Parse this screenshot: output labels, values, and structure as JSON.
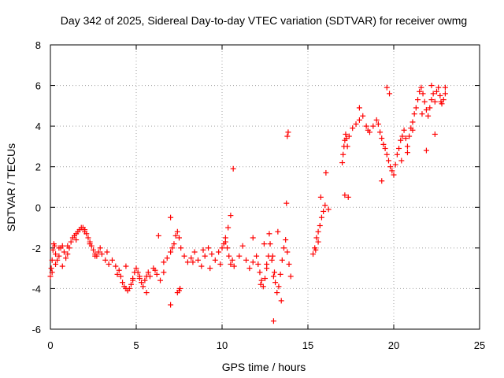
{
  "chart_data": {
    "type": "scatter",
    "title": "Day 342 of 2025, Sidereal Day-to-day VTEC variation (SDTVAR) for receiver owmg",
    "xlabel": "GPS time / hours",
    "ylabel": "SDTVAR / TECUs",
    "xlim": [
      0,
      25
    ],
    "ylim": [
      -6,
      8
    ],
    "xticks": [
      0,
      5,
      10,
      15,
      20,
      25
    ],
    "yticks": [
      -6,
      -4,
      -2,
      0,
      2,
      4,
      6,
      8
    ],
    "xtick_labels": [
      "0",
      "5",
      "10",
      "15",
      "20",
      "25"
    ],
    "ytick_labels": [
      "-6",
      "-4",
      "-2",
      "0",
      "2",
      "4",
      "6",
      "8"
    ],
    "grid": true,
    "marker": "+",
    "color": "#ff0000",
    "series": [
      {
        "name": "SDTVAR",
        "x": [
          0.0,
          0.05,
          0.1,
          0.15,
          0.2,
          0.25,
          0.3,
          0.4,
          0.5,
          0.6,
          0.7,
          0.8,
          0.9,
          1.0,
          1.1,
          1.2,
          1.3,
          1.4,
          1.5,
          1.6,
          1.7,
          1.8,
          1.9,
          2.0,
          2.1,
          2.2,
          2.3,
          2.4,
          2.5,
          2.6,
          2.7,
          2.8,
          2.9,
          3.0,
          3.2,
          3.4,
          3.6,
          3.8,
          4.0,
          4.1,
          4.2,
          4.3,
          4.4,
          4.5,
          4.6,
          4.7,
          4.8,
          4.9,
          5.0,
          5.1,
          5.2,
          5.3,
          5.4,
          5.5,
          5.6,
          5.7,
          5.8,
          6.0,
          6.2,
          6.4,
          6.6,
          6.8,
          7.0,
          7.1,
          7.2,
          7.3,
          7.4,
          7.5,
          7.6,
          7.8,
          8.0,
          8.2,
          8.4,
          8.6,
          8.8,
          9.0,
          9.2,
          9.4,
          9.6,
          9.8,
          10.0,
          10.1,
          10.2,
          10.3,
          10.4,
          10.5,
          10.6,
          10.7,
          11.0,
          11.2,
          11.4,
          11.6,
          11.8,
          12.0,
          12.1,
          12.2,
          12.3,
          12.4,
          12.5,
          12.6,
          12.7,
          12.8,
          12.9,
          13.0,
          13.1,
          13.2,
          13.3,
          13.4,
          13.5,
          13.6,
          13.7,
          13.8,
          13.9,
          14.0,
          15.3,
          15.4,
          15.5,
          15.6,
          15.7,
          15.8,
          15.9,
          16.0,
          17.0,
          17.05,
          17.1,
          17.15,
          17.2,
          17.25,
          17.3,
          17.4,
          17.6,
          17.8,
          18.0,
          18.2,
          18.4,
          18.6,
          18.8,
          19.0,
          19.1,
          19.2,
          19.3,
          19.4,
          19.5,
          19.6,
          19.7,
          19.8,
          19.9,
          20.0,
          20.1,
          20.2,
          20.3,
          20.4,
          20.5,
          20.6,
          20.7,
          20.8,
          20.9,
          21.0,
          21.1,
          21.2,
          21.3,
          21.4,
          21.5,
          21.6,
          21.7,
          21.8,
          21.9,
          22.0,
          22.1,
          22.2,
          22.3,
          22.4,
          22.5,
          22.6,
          22.7,
          22.8,
          22.9,
          23.0,
          0.1,
          0.3,
          0.5,
          0.7,
          1.0,
          1.5,
          2.0,
          2.3,
          2.6,
          3.3,
          3.9,
          4.4,
          4.8,
          5.2,
          5.6,
          6.1,
          6.6,
          7.4,
          7.5,
          7.55,
          8.3,
          8.9,
          9.3,
          9.9,
          10.2,
          10.35,
          10.5,
          10.65,
          11.8,
          12.25,
          12.45,
          12.6,
          12.75,
          12.95,
          13.05,
          13.25,
          13.45,
          13.75,
          13.85,
          15.45,
          15.6,
          15.75,
          16.05,
          16.2,
          17.15,
          17.35,
          18.0,
          18.5,
          19.6,
          19.75,
          20.45,
          20.8,
          21.1,
          21.65,
          22.2,
          22.75,
          23.0,
          21.9,
          22.4
        ],
        "y": [
          -3.4,
          -3.0,
          -2.6,
          -2.1,
          -1.8,
          -1.9,
          -2.3,
          -2.6,
          -2.4,
          -2.0,
          -1.9,
          -2.2,
          -2.5,
          -2.3,
          -2.0,
          -1.7,
          -1.5,
          -1.4,
          -1.3,
          -1.2,
          -1.1,
          -1.0,
          -1.0,
          -1.1,
          -1.3,
          -1.5,
          -1.7,
          -1.9,
          -2.1,
          -2.3,
          -2.4,
          -2.2,
          -2.0,
          -2.3,
          -2.6,
          -2.8,
          -2.6,
          -2.9,
          -3.1,
          -3.4,
          -3.7,
          -3.9,
          -4.0,
          -4.1,
          -4.0,
          -3.8,
          -3.5,
          -3.2,
          -3.0,
          -3.2,
          -3.5,
          -3.7,
          -3.9,
          -3.6,
          -3.4,
          -3.2,
          -3.4,
          -3.0,
          -3.3,
          -3.6,
          -3.2,
          -2.5,
          -2.2,
          -2.0,
          -1.8,
          -1.4,
          -1.2,
          -1.5,
          -2.0,
          -2.4,
          -2.7,
          -2.5,
          -2.2,
          -2.6,
          -2.9,
          -2.4,
          -2.0,
          -2.3,
          -2.6,
          -2.2,
          -2.0,
          -1.8,
          -1.7,
          -2.0,
          -2.4,
          -2.8,
          -2.6,
          -2.9,
          -2.4,
          -1.9,
          -2.6,
          -3.0,
          -2.7,
          -2.4,
          -2.8,
          -3.2,
          -3.6,
          -3.9,
          -3.5,
          -3.0,
          -2.4,
          -1.8,
          -2.6,
          -3.4,
          -3.7,
          -4.2,
          -3.9,
          -3.3,
          -2.6,
          -2.0,
          -1.6,
          -2.2,
          -2.8,
          -3.4,
          -2.3,
          -2.0,
          -1.5,
          -1.2,
          -0.9,
          -0.5,
          -0.2,
          0.1,
          2.2,
          2.6,
          3.0,
          3.3,
          3.6,
          3.4,
          3.0,
          3.5,
          3.9,
          4.1,
          4.3,
          4.5,
          4.0,
          3.7,
          4.0,
          4.3,
          4.1,
          3.7,
          3.4,
          3.1,
          2.9,
          2.6,
          2.3,
          2.0,
          1.8,
          1.6,
          2.1,
          2.6,
          2.9,
          3.3,
          3.5,
          3.8,
          3.4,
          3.0,
          3.5,
          3.9,
          4.2,
          4.6,
          4.9,
          5.3,
          5.7,
          5.9,
          5.6,
          5.2,
          4.8,
          4.5,
          4.9,
          5.3,
          5.6,
          5.2,
          5.7,
          5.9,
          5.5,
          5.1,
          5.3,
          5.6,
          -3.2,
          -2.8,
          -2.0,
          -2.9,
          -1.9,
          -1.6,
          -1.2,
          -1.8,
          -2.4,
          -2.2,
          -3.3,
          -2.9,
          -3.6,
          -3.4,
          -4.2,
          -3.1,
          -2.7,
          -4.2,
          -4.1,
          -4.0,
          -2.7,
          -2.1,
          -3.0,
          -2.8,
          -1.5,
          -1.0,
          -0.4,
          1.9,
          -1.5,
          -3.8,
          -1.8,
          -2.8,
          -1.3,
          -2.4,
          -3.2,
          -1.2,
          -4.6,
          0.2,
          3.7,
          -2.1,
          -1.7,
          0.5,
          1.7,
          -0.1,
          0.6,
          0.5,
          4.9,
          3.8,
          5.9,
          5.6,
          2.3,
          2.7,
          3.8,
          4.6,
          6.0,
          5.2,
          5.9,
          2.8,
          3.6
        ],
        "extra_markers": [
          {
            "x": 7.0,
            "y": -4.8
          },
          {
            "x": 13.0,
            "y": -5.6
          },
          {
            "x": 7.0,
            "y": -0.5
          },
          {
            "x": 6.3,
            "y": -1.4
          },
          {
            "x": 13.8,
            "y": 3.5
          },
          {
            "x": 19.3,
            "y": 1.3
          }
        ]
      }
    ]
  }
}
